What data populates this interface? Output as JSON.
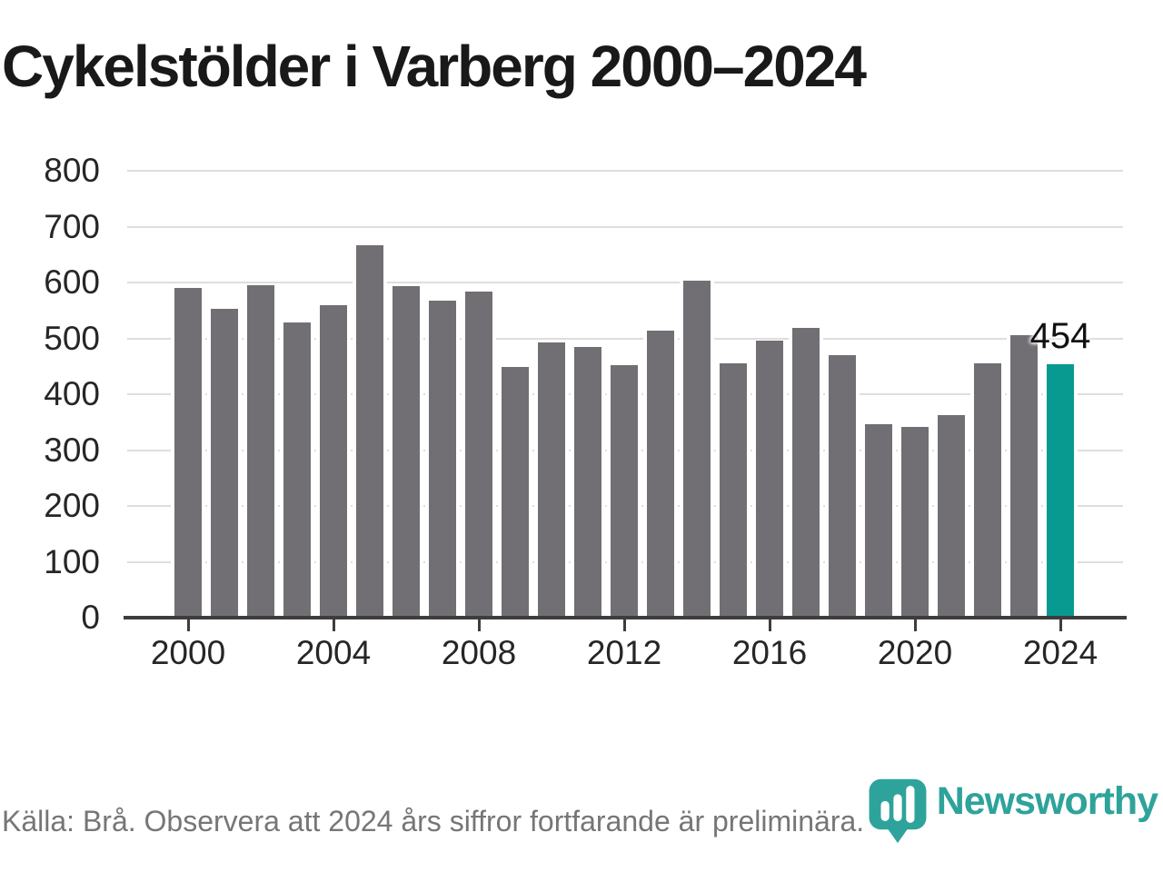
{
  "title": "Cykelstölder i Varberg 2000–2024",
  "footer": {
    "source_note": "Källa: Brå. Observera att 2024 års siffror fortfarande är preliminära.",
    "brand": "Newsworthy"
  },
  "colors": {
    "bar": "#716f73",
    "highlight_bar": "#089a90",
    "grid": "#dedede",
    "axis": "#3d3d3d",
    "title_text": "#191919",
    "axis_label_text": "#262626",
    "annotation_text": "#111111",
    "footer_text": "#767676",
    "brand_teal": "#2ea39b"
  },
  "chart_data": {
    "type": "bar",
    "title": "Cykelstölder i Varberg 2000–2024",
    "xlabel": "",
    "ylabel": "",
    "x": [
      2000,
      2001,
      2002,
      2003,
      2004,
      2005,
      2006,
      2007,
      2008,
      2009,
      2010,
      2011,
      2012,
      2013,
      2014,
      2015,
      2016,
      2017,
      2018,
      2019,
      2020,
      2021,
      2022,
      2023,
      2024
    ],
    "values": [
      590,
      553,
      595,
      528,
      560,
      667,
      594,
      567,
      584,
      449,
      492,
      485,
      452,
      514,
      604,
      455,
      496,
      518,
      470,
      347,
      342,
      363,
      455,
      505,
      454
    ],
    "highlight_year": 2024,
    "annotation": {
      "year": 2024,
      "text": "454"
    },
    "ylim": [
      0,
      800
    ],
    "yticks": [
      0,
      100,
      200,
      300,
      400,
      500,
      600,
      700,
      800
    ],
    "xticks": [
      2000,
      2004,
      2008,
      2012,
      2016,
      2020,
      2024
    ],
    "grid": true,
    "legend": false
  }
}
